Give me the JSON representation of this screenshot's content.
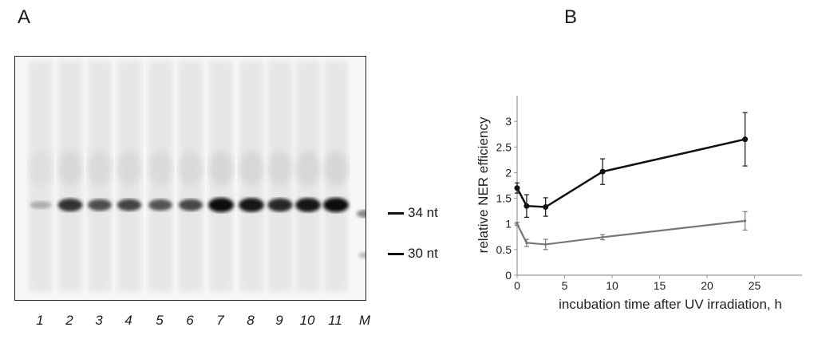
{
  "panels": {
    "a": "A",
    "b": "B"
  },
  "gel": {
    "lanes": [
      "1",
      "2",
      "3",
      "4",
      "5",
      "6",
      "7",
      "8",
      "9",
      "10",
      "11",
      "M"
    ],
    "band_intensity": [
      0.15,
      0.8,
      0.65,
      0.7,
      0.62,
      0.68,
      1.0,
      0.95,
      0.85,
      0.95,
      1.0,
      0.35
    ],
    "markers": [
      "34 nt",
      "30 nt"
    ]
  },
  "chart_data": {
    "type": "line",
    "xlabel": "incubation time after UV irradiation, h",
    "ylabel": "relative NER efficiency",
    "xlim": [
      0,
      30
    ],
    "ylim": [
      0,
      3.5
    ],
    "xticks": [
      0,
      5,
      10,
      15,
      20,
      25
    ],
    "yticks": [
      0,
      0.5,
      1,
      1.5,
      2,
      2.5,
      3
    ],
    "series": [
      {
        "color": "#111111",
        "x": [
          0,
          1,
          3,
          9,
          24
        ],
        "y": [
          1.7,
          1.35,
          1.33,
          2.02,
          2.65
        ],
        "err": [
          0.1,
          0.22,
          0.18,
          0.25,
          0.52
        ]
      },
      {
        "color": "#777777",
        "x": [
          0,
          1,
          3,
          9,
          24
        ],
        "y": [
          1.0,
          0.63,
          0.6,
          0.74,
          1.06
        ],
        "err": [
          0.03,
          0.07,
          0.1,
          0.05,
          0.18
        ]
      }
    ]
  }
}
